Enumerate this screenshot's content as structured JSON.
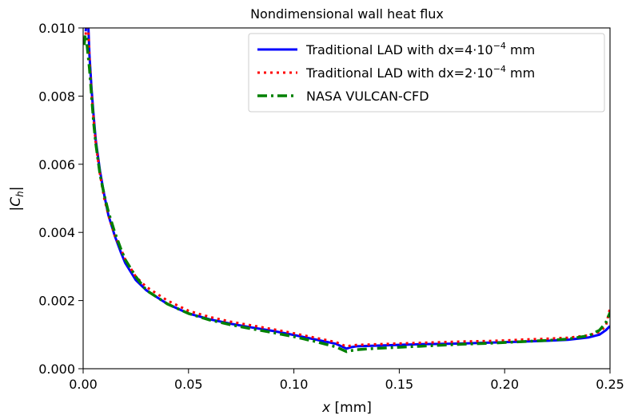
{
  "chart_data": {
    "type": "line",
    "title": "Nondimensional wall heat flux",
    "xlabel_var": "x",
    "xlabel_unit": "[mm]",
    "ylabel_open": "|",
    "ylabel_var": "C",
    "ylabel_sub": "h",
    "ylabel_close": "|",
    "xlim": [
      0.0,
      0.25
    ],
    "ylim": [
      0.0,
      0.01
    ],
    "xticks": [
      0.0,
      0.05,
      0.1,
      0.15,
      0.2,
      0.25
    ],
    "xtick_labels": [
      "0.00",
      "0.05",
      "0.10",
      "0.15",
      "0.20",
      "0.25"
    ],
    "yticks": [
      0.0,
      0.002,
      0.004,
      0.006,
      0.008,
      0.01
    ],
    "ytick_labels": [
      "0.000",
      "0.002",
      "0.004",
      "0.006",
      "0.008",
      "0.010"
    ],
    "grid": false,
    "legend_position": "top-right",
    "series": [
      {
        "name_prefix": "Traditional LAD with dx=4",
        "name_dot": "·",
        "name_base": "10",
        "name_exp": "−4",
        "name_suffix": " mm",
        "color": "#0000ff",
        "style": "solid",
        "x": [
          0.0012,
          0.0016,
          0.002,
          0.0025,
          0.003,
          0.004,
          0.005,
          0.006,
          0.008,
          0.01,
          0.012,
          0.015,
          0.018,
          0.02,
          0.025,
          0.03,
          0.035,
          0.04,
          0.05,
          0.06,
          0.07,
          0.08,
          0.09,
          0.1,
          0.11,
          0.12,
          0.125,
          0.127,
          0.13,
          0.14,
          0.15,
          0.16,
          0.17,
          0.18,
          0.19,
          0.2,
          0.21,
          0.22,
          0.23,
          0.24,
          0.245,
          0.248,
          0.25
        ],
        "y": [
          0.0099,
          0.0102,
          0.0102,
          0.01,
          0.0092,
          0.0082,
          0.0074,
          0.0067,
          0.0058,
          0.0051,
          0.0045,
          0.0039,
          0.0034,
          0.0031,
          0.0026,
          0.0023,
          0.0021,
          0.0019,
          0.00162,
          0.00145,
          0.00132,
          0.00121,
          0.00111,
          0.00099,
          0.00086,
          0.00073,
          0.00059,
          0.00063,
          0.00066,
          0.00068,
          0.0007,
          0.00072,
          0.00073,
          0.00074,
          0.00076,
          0.00078,
          0.0008,
          0.00082,
          0.00085,
          0.00092,
          0.001,
          0.00113,
          0.00125
        ]
      },
      {
        "name_prefix": "Traditional LAD with dx=2",
        "name_dot": "·",
        "name_base": "10",
        "name_exp": "−4",
        "name_suffix": " mm",
        "color": "#ff0000",
        "style": "dotted",
        "x": [
          0.0012,
          0.0016,
          0.002,
          0.0025,
          0.003,
          0.004,
          0.005,
          0.006,
          0.008,
          0.01,
          0.012,
          0.015,
          0.018,
          0.02,
          0.025,
          0.03,
          0.035,
          0.04,
          0.05,
          0.06,
          0.07,
          0.08,
          0.09,
          0.1,
          0.11,
          0.12,
          0.125,
          0.127,
          0.13,
          0.14,
          0.15,
          0.16,
          0.17,
          0.18,
          0.19,
          0.2,
          0.21,
          0.22,
          0.23,
          0.24,
          0.245,
          0.248,
          0.25
        ],
        "y": [
          0.0098,
          0.0101,
          0.0101,
          0.0099,
          0.0091,
          0.0081,
          0.0073,
          0.0066,
          0.0057,
          0.005,
          0.0045,
          0.0039,
          0.0035,
          0.0032,
          0.0027,
          0.0024,
          0.0022,
          0.002,
          0.0017,
          0.00152,
          0.00138,
          0.00127,
          0.00116,
          0.00104,
          0.00091,
          0.00078,
          0.00065,
          0.00068,
          0.0007,
          0.00072,
          0.00074,
          0.00076,
          0.00078,
          0.0008,
          0.00081,
          0.00083,
          0.00086,
          0.00088,
          0.00091,
          0.00098,
          0.00108,
          0.00125,
          0.00178
        ]
      },
      {
        "name_prefix": "NASA VULCAN-CFD",
        "name_dot": "",
        "name_base": "",
        "name_exp": "",
        "name_suffix": "",
        "color": "#008000",
        "style": "dashdot",
        "x": [
          0.0005,
          0.001,
          0.0015,
          0.002,
          0.003,
          0.004,
          0.005,
          0.006,
          0.008,
          0.01,
          0.012,
          0.015,
          0.018,
          0.02,
          0.025,
          0.03,
          0.035,
          0.04,
          0.05,
          0.06,
          0.07,
          0.08,
          0.09,
          0.1,
          0.11,
          0.12,
          0.125,
          0.127,
          0.13,
          0.14,
          0.15,
          0.16,
          0.17,
          0.18,
          0.19,
          0.2,
          0.21,
          0.22,
          0.23,
          0.24,
          0.245,
          0.248,
          0.25
        ],
        "y": [
          0.0095,
          0.0098,
          0.0097,
          0.0094,
          0.0088,
          0.008,
          0.0072,
          0.0066,
          0.0057,
          0.0051,
          0.0046,
          0.004,
          0.0035,
          0.0032,
          0.0027,
          0.0023,
          0.0021,
          0.0019,
          0.00162,
          0.00143,
          0.00129,
          0.00117,
          0.00106,
          0.00094,
          0.0008,
          0.00064,
          0.0005,
          0.00053,
          0.00056,
          0.0006,
          0.00063,
          0.00066,
          0.00069,
          0.00072,
          0.00074,
          0.00077,
          0.0008,
          0.00083,
          0.00087,
          0.00097,
          0.00113,
          0.00135,
          0.00165
        ]
      }
    ]
  }
}
